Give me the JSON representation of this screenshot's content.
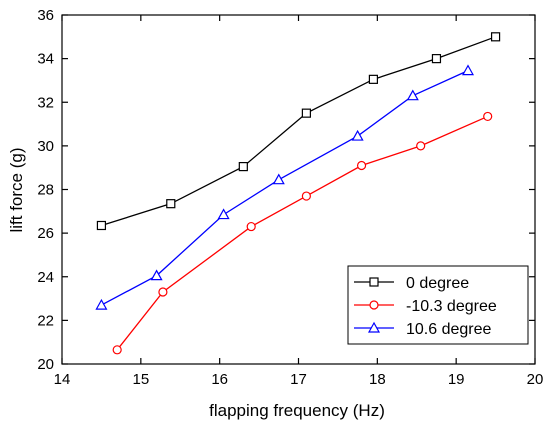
{
  "chart_data": {
    "type": "line",
    "xlabel": "flapping frequency (Hz)",
    "ylabel": "lift force (g)",
    "xlim": [
      14,
      20
    ],
    "ylim": [
      20,
      36
    ],
    "xticks": [
      14,
      15,
      16,
      17,
      18,
      19,
      20
    ],
    "yticks": [
      20,
      22,
      24,
      26,
      28,
      30,
      32,
      34,
      36
    ],
    "grid": false,
    "legend_position": "bottom-right",
    "series": [
      {
        "name": "0 degree",
        "color": "#000000",
        "marker": "square",
        "x": [
          14.5,
          15.38,
          16.3,
          17.1,
          17.95,
          18.75,
          19.5
        ],
        "y": [
          26.35,
          27.35,
          29.05,
          31.5,
          33.05,
          34.0,
          35.0
        ]
      },
      {
        "name": "-10.3 degree",
        "color": "#ff0000",
        "marker": "circle",
        "x": [
          14.7,
          15.28,
          16.4,
          17.1,
          17.8,
          18.55,
          19.4
        ],
        "y": [
          20.65,
          23.3,
          26.3,
          27.7,
          29.1,
          30.0,
          31.35
        ]
      },
      {
        "name": "10.6 degree",
        "color": "#0000ff",
        "marker": "triangle",
        "x": [
          14.5,
          15.2,
          16.05,
          16.75,
          17.75,
          18.45,
          19.15
        ],
        "y": [
          22.7,
          24.05,
          26.85,
          28.45,
          30.45,
          32.3,
          33.45
        ]
      }
    ]
  }
}
